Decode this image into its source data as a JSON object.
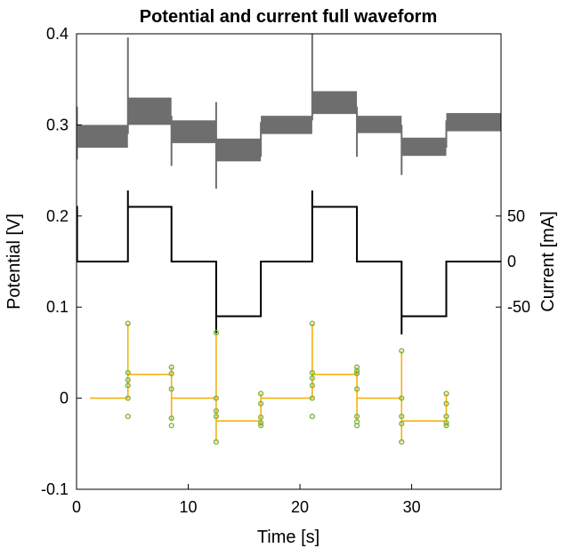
{
  "chart_data": {
    "type": "line",
    "title": "Potential and current full waveform",
    "xlabel": "Time [s]",
    "ylabel": "Potential [V]",
    "y2label": "Current [mA]",
    "xlim": [
      0,
      38
    ],
    "ylim": [
      -0.1,
      0.4
    ],
    "x_ticks": [
      0,
      10,
      20,
      30
    ],
    "x_tick_labels": [
      "0",
      "10",
      "20",
      "30"
    ],
    "y_ticks": [
      -0.1,
      0,
      0.1,
      0.2,
      0.3,
      0.4
    ],
    "y_tick_labels": [
      "-0.1",
      "0",
      "0.1",
      "0.2",
      "0.3",
      "0.4"
    ],
    "y2_ticks": [
      50,
      0,
      -50
    ],
    "y2_tick_labels": [
      "50",
      "0",
      "-50"
    ],
    "y2_mapping": {
      "current_mA": [
        -50,
        0,
        50
      ],
      "left_axis_equivalent": [
        0.1,
        0.15,
        0.2
      ]
    },
    "grid": false,
    "colors": {
      "potential": "#6e6e6e",
      "current": "#000000",
      "response": "#f5b20f",
      "markers": "#7cb342"
    },
    "series": [
      {
        "role": "potential band",
        "segments": [
          {
            "t": [
              0,
              4.6
            ],
            "low": 0.275,
            "high": 0.3
          },
          {
            "t": [
              4.6,
              8.5
            ],
            "low": 0.3,
            "high": 0.33
          },
          {
            "t": [
              8.5,
              12.5
            ],
            "low": 0.28,
            "high": 0.305
          },
          {
            "t": [
              12.5,
              16.5
            ],
            "low": 0.26,
            "high": 0.285
          },
          {
            "t": [
              16.5,
              21.1
            ],
            "low": 0.29,
            "high": 0.31
          },
          {
            "t": [
              21.1,
              25.1
            ],
            "low": 0.312,
            "high": 0.337
          },
          {
            "t": [
              25.1,
              29.1
            ],
            "low": 0.291,
            "high": 0.31
          },
          {
            "t": [
              29.1,
              33.1
            ],
            "low": 0.266,
            "high": 0.286
          },
          {
            "t": [
              33.1,
              38
            ],
            "low": 0.293,
            "high": 0.313
          }
        ],
        "spikes": [
          {
            "t": 0.04,
            "low": 0.262,
            "high": 0.32
          },
          {
            "t": 4.6,
            "low": 0.29,
            "high": 0.396
          },
          {
            "t": 8.5,
            "low": 0.255,
            "high": 0.31
          },
          {
            "t": 12.5,
            "low": 0.23,
            "high": 0.325
          },
          {
            "t": 16.5,
            "low": 0.265,
            "high": 0.303
          },
          {
            "t": 21.1,
            "low": 0.305,
            "high": 0.4
          },
          {
            "t": 25.1,
            "low": 0.265,
            "high": 0.32
          },
          {
            "t": 29.1,
            "low": 0.245,
            "high": 0.3
          },
          {
            "t": 33.1,
            "low": 0.275,
            "high": 0.305
          }
        ]
      },
      {
        "role": "current step",
        "points_y_on_left_axis": [
          [
            0,
            0.21
          ],
          [
            0.05,
            0.21
          ],
          [
            0.05,
            0.15
          ],
          [
            4.6,
            0.15
          ],
          [
            4.6,
            0.228
          ],
          [
            4.6,
            0.21
          ],
          [
            8.5,
            0.21
          ],
          [
            8.5,
            0.15
          ],
          [
            12.5,
            0.15
          ],
          [
            12.5,
            0.07
          ],
          [
            12.5,
            0.09
          ],
          [
            16.5,
            0.09
          ],
          [
            16.5,
            0.15
          ],
          [
            21.1,
            0.15
          ],
          [
            21.1,
            0.228
          ],
          [
            21.1,
            0.21
          ],
          [
            25.1,
            0.21
          ],
          [
            25.1,
            0.15
          ],
          [
            29.1,
            0.15
          ],
          [
            29.1,
            0.07
          ],
          [
            29.1,
            0.09
          ],
          [
            33.1,
            0.09
          ],
          [
            33.1,
            0.15
          ],
          [
            38,
            0.15
          ]
        ]
      },
      {
        "role": "response",
        "points": [
          [
            1.2,
            0
          ],
          [
            4.6,
            0
          ],
          [
            4.6,
            0.082
          ],
          [
            4.6,
            0.026
          ],
          [
            8.5,
            0.026
          ],
          [
            8.5,
            0.034
          ],
          [
            8.5,
            -0.025
          ],
          [
            8.5,
            0
          ],
          [
            12.5,
            0
          ],
          [
            12.5,
            -0.048
          ],
          [
            12.5,
            0.072
          ],
          [
            12.5,
            -0.025
          ],
          [
            16.5,
            -0.025
          ],
          [
            16.5,
            -0.031
          ],
          [
            16.5,
            0.005
          ],
          [
            16.5,
            0
          ],
          [
            21.1,
            0
          ],
          [
            21.1,
            0.082
          ],
          [
            21.1,
            0.026
          ],
          [
            25.1,
            0.026
          ],
          [
            25.1,
            0.034
          ],
          [
            25.1,
            -0.025
          ],
          [
            25.1,
            0
          ],
          [
            29.1,
            0
          ],
          [
            29.1,
            -0.048
          ],
          [
            29.1,
            0.052
          ],
          [
            29.1,
            -0.025
          ],
          [
            33.1,
            -0.025
          ],
          [
            33.1,
            -0.031
          ],
          [
            33.1,
            0.005
          ],
          [
            33.1,
            0
          ]
        ],
        "markers": [
          [
            4.6,
            0.082
          ],
          [
            4.6,
            0.028
          ],
          [
            4.6,
            0.02
          ],
          [
            4.6,
            0.014
          ],
          [
            4.6,
            0
          ],
          [
            4.6,
            -0.02
          ],
          [
            8.5,
            0.034
          ],
          [
            8.5,
            0.027
          ],
          [
            8.5,
            0.01
          ],
          [
            8.5,
            -0.022
          ],
          [
            8.5,
            -0.03
          ],
          [
            12.5,
            0.072
          ],
          [
            12.5,
            0
          ],
          [
            12.5,
            -0.014
          ],
          [
            12.5,
            -0.02
          ],
          [
            12.5,
            -0.048
          ],
          [
            16.5,
            0.005
          ],
          [
            16.5,
            -0.006
          ],
          [
            16.5,
            -0.021
          ],
          [
            16.5,
            -0.027
          ],
          [
            16.5,
            -0.03
          ],
          [
            21.1,
            0.082
          ],
          [
            21.1,
            0.028
          ],
          [
            21.1,
            0.022
          ],
          [
            21.1,
            0.014
          ],
          [
            21.1,
            0
          ],
          [
            21.1,
            -0.02
          ],
          [
            25.1,
            0.034
          ],
          [
            25.1,
            0.03
          ],
          [
            25.1,
            0.027
          ],
          [
            25.1,
            0.01
          ],
          [
            25.1,
            -0.02
          ],
          [
            25.1,
            -0.026
          ],
          [
            25.1,
            -0.03
          ],
          [
            29.1,
            0.052
          ],
          [
            29.1,
            0
          ],
          [
            29.1,
            -0.02
          ],
          [
            29.1,
            -0.028
          ],
          [
            29.1,
            -0.048
          ],
          [
            33.1,
            0.005
          ],
          [
            33.1,
            -0.006
          ],
          [
            33.1,
            -0.02
          ],
          [
            33.1,
            -0.027
          ],
          [
            33.1,
            -0.03
          ]
        ]
      }
    ]
  }
}
